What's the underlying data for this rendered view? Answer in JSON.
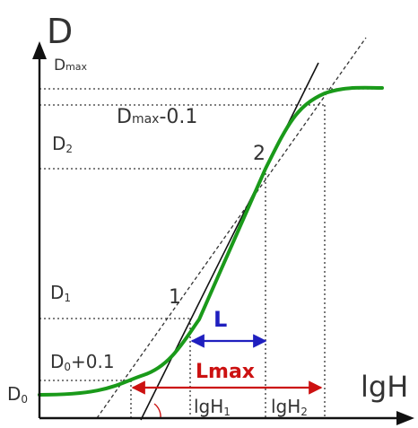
{
  "axes": {
    "y_title": "D",
    "x_title": "lgH"
  },
  "y_levels": {
    "dmax_base": "D",
    "dmax_sub": "max",
    "dmax_minus_base": "D",
    "dmax_minus_sub": "max",
    "dmax_minus_suffix": "-0.1",
    "d2_base": "D",
    "d2_sub": "2",
    "d1_base": "D",
    "d1_sub": "1",
    "d0p_base": "D",
    "d0p_sub": "0",
    "d0p_suffix": "+0.1",
    "d0_base": "D",
    "d0_sub": "0"
  },
  "points": {
    "p1": "1",
    "p2": "2"
  },
  "intervals": {
    "L": "L",
    "Lmax": "Lmax",
    "lgh1_base": "lgH",
    "lgh1_sub": "1",
    "lgh2_base": "lgH",
    "lgh2_sub": "2"
  },
  "colors": {
    "curve": "#1a9a1a",
    "L_arrow": "#1f1fbf",
    "Lmax_arrow": "#cc1111",
    "axis": "#111111",
    "guide": "#333333"
  }
}
